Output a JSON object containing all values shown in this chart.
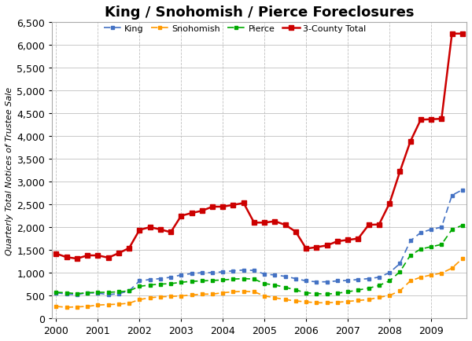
{
  "title": "King / Snohomish / Pierce Foreclosures",
  "ylabel": "Quarterly Total Notices of Trustee Sale",
  "ylim": [
    0,
    6500
  ],
  "yticks": [
    0,
    500,
    1000,
    1500,
    2000,
    2500,
    3000,
    3500,
    4000,
    4500,
    5000,
    5500,
    6000,
    6500
  ],
  "xlim": [
    1999.9,
    2009.85
  ],
  "xticks": [
    2000,
    2001,
    2002,
    2003,
    2004,
    2005,
    2006,
    2007,
    2008,
    2009
  ],
  "legend_labels": [
    "King",
    "Snohomish",
    "Pierce",
    "3-County Total"
  ],
  "colors": {
    "King": "#4472C4",
    "Snohomish": "#FF9900",
    "Pierce": "#00AA00",
    "Total": "#CC0000"
  },
  "quarters": [
    2000.0,
    2000.25,
    2000.5,
    2000.75,
    2001.0,
    2001.25,
    2001.5,
    2001.75,
    2002.0,
    2002.25,
    2002.5,
    2002.75,
    2003.0,
    2003.25,
    2003.5,
    2003.75,
    2004.0,
    2004.25,
    2004.5,
    2004.75,
    2005.0,
    2005.25,
    2005.5,
    2005.75,
    2006.0,
    2006.25,
    2006.5,
    2006.75,
    2007.0,
    2007.25,
    2007.5,
    2007.75,
    2008.0,
    2008.25,
    2008.5,
    2008.75,
    2009.0,
    2009.25,
    2009.5,
    2009.75
  ],
  "King": [
    560,
    530,
    520,
    560,
    550,
    520,
    540,
    600,
    820,
    850,
    870,
    900,
    950,
    980,
    1000,
    1000,
    1020,
    1040,
    1060,
    1050,
    970,
    950,
    920,
    870,
    820,
    800,
    800,
    820,
    830,
    850,
    870,
    900,
    1000,
    1200,
    1700,
    1880,
    1950,
    2000,
    2700,
    2820
  ],
  "Snohomish": [
    260,
    240,
    250,
    260,
    290,
    300,
    310,
    330,
    410,
    450,
    470,
    480,
    490,
    510,
    530,
    530,
    560,
    580,
    590,
    580,
    490,
    450,
    410,
    380,
    360,
    340,
    340,
    350,
    370,
    390,
    410,
    460,
    500,
    600,
    820,
    900,
    950,
    990,
    1100,
    1310
  ],
  "Pierce": [
    570,
    560,
    540,
    560,
    570,
    570,
    580,
    600,
    700,
    730,
    750,
    760,
    790,
    810,
    820,
    830,
    840,
    860,
    870,
    860,
    760,
    730,
    680,
    620,
    560,
    540,
    530,
    550,
    580,
    620,
    660,
    720,
    820,
    1020,
    1380,
    1520,
    1570,
    1620,
    1950,
    2040
  ],
  "Total": [
    1420,
    1340,
    1310,
    1380,
    1380,
    1330,
    1430,
    1540,
    1940,
    2000,
    1950,
    1890,
    2250,
    2310,
    2360,
    2450,
    2450,
    2490,
    2530,
    2100,
    2100,
    2130,
    2050,
    1900,
    1530,
    1560,
    1600,
    1690,
    1720,
    1750,
    2050,
    2060,
    2520,
    3220,
    3880,
    4360,
    4370,
    4380,
    6250,
    6250
  ],
  "background_color": "#FFFFFF",
  "plot_bg_color": "#FFFFFF",
  "grid_color": "#C0C0C0"
}
